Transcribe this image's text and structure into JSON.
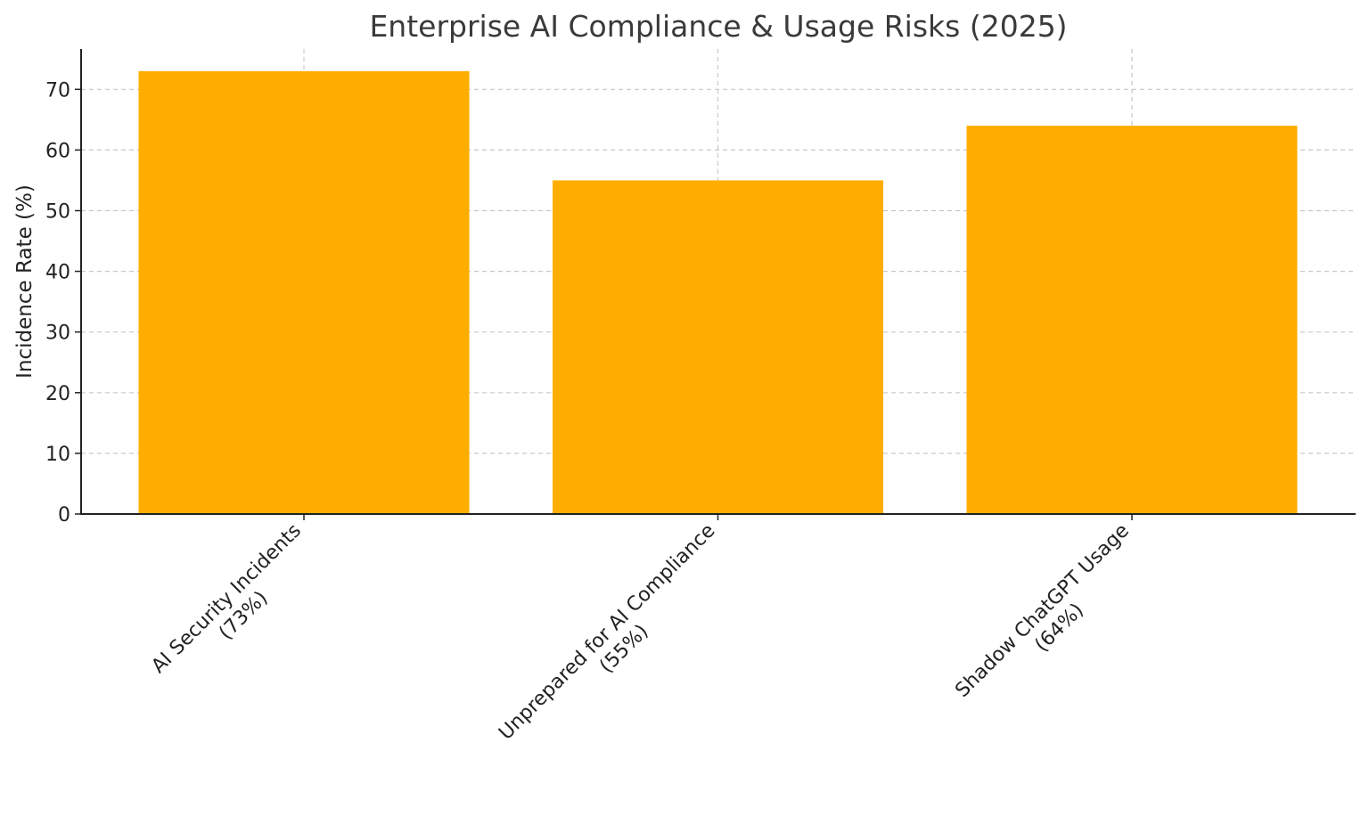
{
  "chart_data": {
    "type": "bar",
    "title": "Enterprise AI Compliance & Usage Risks (2025)",
    "xlabel": "",
    "ylabel": "Incidence Rate (%)",
    "categories": [
      [
        "AI Security Incidents",
        "(73%)"
      ],
      [
        "Unprepared for AI Compliance",
        "(55%)"
      ],
      [
        "Shadow ChatGPT Usage",
        "(64%)"
      ]
    ],
    "values": [
      73,
      55,
      64
    ],
    "ylim": [
      0,
      76.65
    ],
    "yticks": [
      0,
      10,
      20,
      30,
      40,
      50,
      60,
      70
    ],
    "grid": true,
    "bar_color": "#FFAE00"
  }
}
